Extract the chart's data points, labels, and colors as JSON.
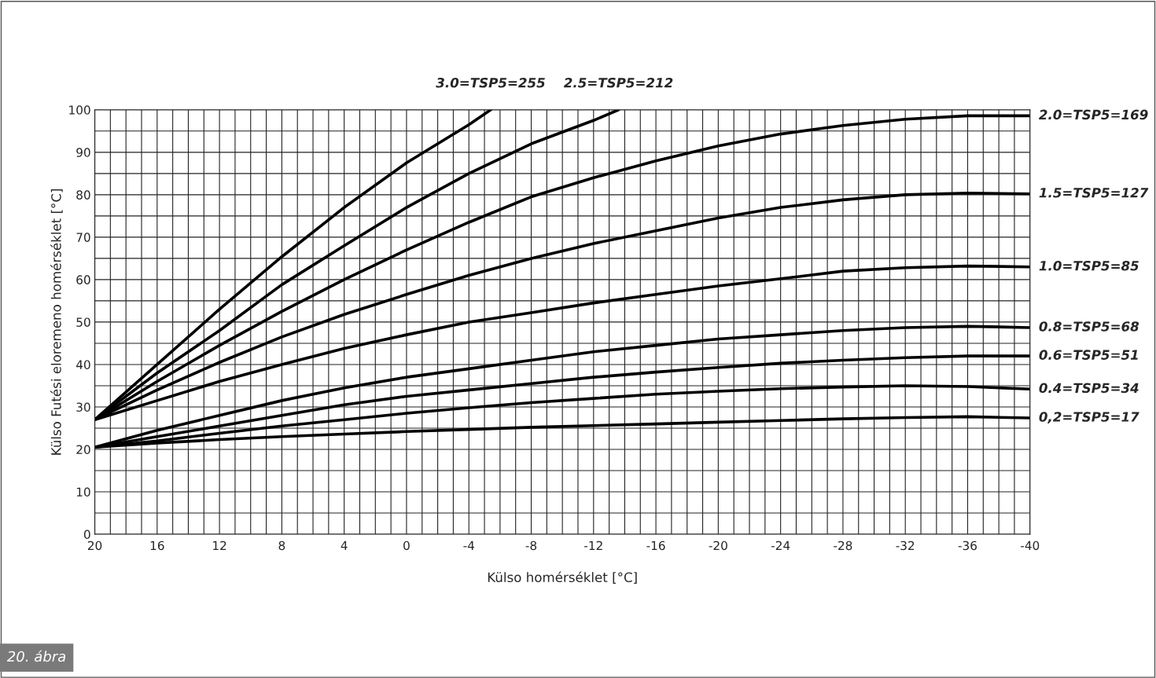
{
  "chart_data": {
    "type": "line",
    "xlabel": "Külso homérséklet [°C]",
    "ylabel": "Külso Futési eloremeno homérséklet [°C]",
    "annotations": [
      "20. ábra"
    ],
    "xlim": [
      20,
      -40
    ],
    "xticks": [
      20,
      16,
      12,
      8,
      4,
      0,
      -4,
      -8,
      -12,
      -16,
      -20,
      -24,
      -28,
      -32,
      -36,
      -40
    ],
    "ylim": [
      0,
      100
    ],
    "yticks": [
      0,
      10,
      20,
      30,
      40,
      50,
      60,
      70,
      80,
      90,
      100
    ],
    "grid": true,
    "legend": false,
    "marker": "none",
    "line_style": "solid",
    "series": [
      {
        "name": "3.0=TSP5=255",
        "color": "#000000",
        "x": [
          20,
          16,
          12,
          8,
          4,
          0,
          -4,
          -5.4
        ],
        "values": [
          27,
          40,
          53,
          65.4,
          77,
          87.5,
          96.5,
          100
        ]
      },
      {
        "name": "2.5=TSP5=212",
        "color": "#000000",
        "x": [
          20,
          16,
          12,
          8,
          4,
          0,
          -4,
          -8,
          -12,
          -13.6
        ],
        "values": [
          27,
          38,
          48,
          58.8,
          68,
          77,
          85,
          92,
          97.5,
          100
        ]
      },
      {
        "name": "2.0=TSP5=169",
        "color": "#000000",
        "x": [
          20,
          16,
          12,
          8,
          4,
          0,
          -4,
          -8,
          -12,
          -16,
          -20,
          -24,
          -28,
          -32,
          -36,
          -40
        ],
        "values": [
          27,
          36,
          44.5,
          52.5,
          60,
          67,
          73.5,
          79.5,
          84,
          88,
          91.5,
          94.3,
          96.3,
          97.8,
          98.6,
          98.6
        ]
      },
      {
        "name": "1.5=TSP5=127",
        "color": "#000000",
        "x": [
          20,
          16,
          12,
          8,
          4,
          0,
          -4,
          -8,
          -12,
          -16,
          -20,
          -24,
          -28,
          -32,
          -36,
          -40
        ],
        "values": [
          27,
          34,
          40.5,
          46.5,
          51.8,
          56.5,
          61,
          65,
          68.5,
          71.5,
          74.5,
          77,
          78.8,
          80,
          80.4,
          80.2
        ]
      },
      {
        "name": "1.0=TSP5=85",
        "color": "#000000",
        "x": [
          20,
          16,
          12,
          8,
          4,
          0,
          -4,
          -8,
          -12,
          -16,
          -20,
          -24,
          -28,
          -32,
          -36,
          -40
        ],
        "values": [
          27,
          31.5,
          36,
          40,
          43.8,
          47,
          50,
          52.2,
          54.5,
          56.5,
          58.5,
          60.2,
          62,
          62.8,
          63.2,
          63
        ]
      },
      {
        "name": "0.8=TSP5=68",
        "color": "#000000",
        "x": [
          20,
          16,
          12,
          8,
          4,
          0,
          -4,
          -8,
          -12,
          -16,
          -20,
          -24,
          -28,
          -32,
          -36,
          -40
        ],
        "values": [
          20.5,
          24.5,
          28,
          31.5,
          34.5,
          37,
          39,
          41,
          43,
          44.5,
          46,
          47,
          48,
          48.7,
          49,
          48.7
        ]
      },
      {
        "name": "0.6=TSP5=51",
        "color": "#000000",
        "x": [
          20,
          16,
          12,
          8,
          4,
          0,
          -4,
          -8,
          -12,
          -16,
          -20,
          -24,
          -28,
          -32,
          -36,
          -40
        ],
        "values": [
          20.5,
          23,
          25.5,
          28,
          30.5,
          32.5,
          34,
          35.5,
          37,
          38.2,
          39.3,
          40.3,
          41,
          41.6,
          42,
          42
        ]
      },
      {
        "name": "0.4=TSP5=34",
        "color": "#000000",
        "x": [
          20,
          16,
          12,
          8,
          4,
          0,
          -4,
          -8,
          -12,
          -16,
          -20,
          -24,
          -28,
          -32,
          -36,
          -40
        ],
        "values": [
          20.5,
          22,
          23.8,
          25.5,
          27,
          28.5,
          29.8,
          31,
          32,
          33,
          33.7,
          34.3,
          34.7,
          35,
          34.8,
          34.2
        ]
      },
      {
        "name": "0,2=TSP5=17",
        "color": "#000000",
        "x": [
          20,
          16,
          12,
          8,
          4,
          0,
          -4,
          -8,
          -12,
          -16,
          -20,
          -24,
          -28,
          -32,
          -36,
          -40
        ],
        "values": [
          20.5,
          21.5,
          22.3,
          23,
          23.6,
          24.2,
          24.7,
          25.2,
          25.6,
          26,
          26.4,
          26.8,
          27.2,
          27.5,
          27.7,
          27.4
        ]
      }
    ]
  }
}
